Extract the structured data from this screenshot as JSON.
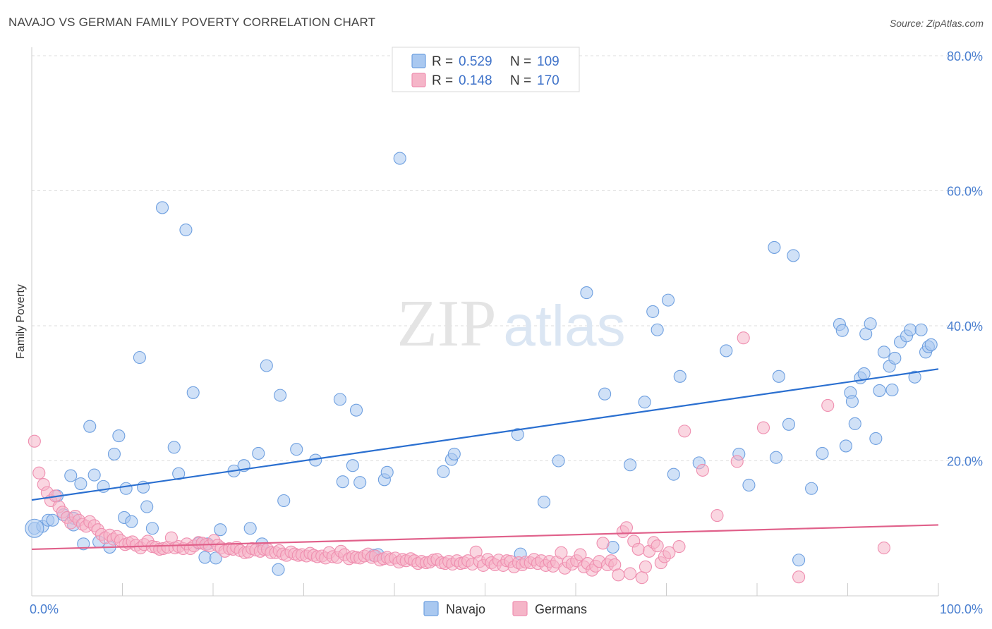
{
  "header": {
    "title": "NAVAJO VS GERMAN FAMILY POVERTY CORRELATION CHART",
    "source": "Source: ZipAtlas.com"
  },
  "watermark": {
    "zip": "ZIP",
    "atlas": "atlas"
  },
  "legend": {
    "r_label": "R =",
    "n_label": "N =",
    "rows": [
      {
        "series": "Navajo",
        "r": "0.529",
        "n": "109",
        "color": "#a9c8f0"
      },
      {
        "series": "Germans",
        "r": "0.148",
        "n": "170",
        "color": "#f5b5c8"
      }
    ]
  },
  "chart_data": {
    "type": "scatter",
    "title": "NAVAJO VS GERMAN FAMILY POVERTY CORRELATION CHART",
    "ylabel": "Family Poverty",
    "xlabel": "",
    "xlim": [
      0,
      100
    ],
    "ylim": [
      0,
      80
    ],
    "x_tick_labels": [
      "0.0%",
      "100.0%"
    ],
    "y_ticks": [
      20,
      40,
      60,
      80
    ],
    "y_tick_labels": [
      "20.0%",
      "40.0%",
      "60.0%",
      "80.0%"
    ],
    "grid": true,
    "legend_position": "top-center",
    "series": [
      {
        "name": "Navajo",
        "color": "#6fa0e0",
        "fill": "#a9c8f0",
        "trend": {
          "x": [
            0,
            100
          ],
          "y": [
            14.2,
            33.6
          ],
          "color": "#2a6fd0"
        },
        "points": [
          [
            0.3,
            10.0
          ],
          [
            1.2,
            10.3
          ],
          [
            1.8,
            11.2
          ],
          [
            2.3,
            11.2
          ],
          [
            2.8,
            14.8
          ],
          [
            3.5,
            12.0
          ],
          [
            4.3,
            17.8
          ],
          [
            4.6,
            11.5
          ],
          [
            4.6,
            10.5
          ],
          [
            5.4,
            16.6
          ],
          [
            5.7,
            7.7
          ],
          [
            6.4,
            25.1
          ],
          [
            6.9,
            17.9
          ],
          [
            7.4,
            8.0
          ],
          [
            7.9,
            16.2
          ],
          [
            8.6,
            7.2
          ],
          [
            9.1,
            21.0
          ],
          [
            9.6,
            23.7
          ],
          [
            10.2,
            11.6
          ],
          [
            10.4,
            15.9
          ],
          [
            11.0,
            11.0
          ],
          [
            11.9,
            35.3
          ],
          [
            12.3,
            16.1
          ],
          [
            12.7,
            13.2
          ],
          [
            13.3,
            10.0
          ],
          [
            14.4,
            57.5
          ],
          [
            15.7,
            22.0
          ],
          [
            16.2,
            18.1
          ],
          [
            17.0,
            54.2
          ],
          [
            17.8,
            30.1
          ],
          [
            18.4,
            7.8
          ],
          [
            19.1,
            5.7
          ],
          [
            19.4,
            7.7
          ],
          [
            20.3,
            5.6
          ],
          [
            20.8,
            9.8
          ],
          [
            22.3,
            18.5
          ],
          [
            23.4,
            19.3
          ],
          [
            24.1,
            10.0
          ],
          [
            25.0,
            21.1
          ],
          [
            25.4,
            7.7
          ],
          [
            25.9,
            34.1
          ],
          [
            27.2,
            3.9
          ],
          [
            27.4,
            29.7
          ],
          [
            27.8,
            14.1
          ],
          [
            29.2,
            21.7
          ],
          [
            31.3,
            20.1
          ],
          [
            34.0,
            29.1
          ],
          [
            34.3,
            16.9
          ],
          [
            35.4,
            19.3
          ],
          [
            35.8,
            27.5
          ],
          [
            36.2,
            16.8
          ],
          [
            37.7,
            6.0
          ],
          [
            38.2,
            6.1
          ],
          [
            38.9,
            17.2
          ],
          [
            39.2,
            18.3
          ],
          [
            40.6,
            64.8
          ],
          [
            45.4,
            18.4
          ],
          [
            46.3,
            20.2
          ],
          [
            46.6,
            21.0
          ],
          [
            53.6,
            23.9
          ],
          [
            53.9,
            6.2
          ],
          [
            56.5,
            13.9
          ],
          [
            58.1,
            20.0
          ],
          [
            61.2,
            44.9
          ],
          [
            63.2,
            29.9
          ],
          [
            64.1,
            7.2
          ],
          [
            66.0,
            19.4
          ],
          [
            67.6,
            28.7
          ],
          [
            68.5,
            42.1
          ],
          [
            69.0,
            39.4
          ],
          [
            70.2,
            43.8
          ],
          [
            70.8,
            18.0
          ],
          [
            71.5,
            32.5
          ],
          [
            73.6,
            19.7
          ],
          [
            76.6,
            36.3
          ],
          [
            78.0,
            21.0
          ],
          [
            79.1,
            16.4
          ],
          [
            81.9,
            51.6
          ],
          [
            82.1,
            20.5
          ],
          [
            82.4,
            32.5
          ],
          [
            83.5,
            25.4
          ],
          [
            84.0,
            50.4
          ],
          [
            84.6,
            5.3
          ],
          [
            86.0,
            15.9
          ],
          [
            87.2,
            21.1
          ],
          [
            89.1,
            40.2
          ],
          [
            89.4,
            39.3
          ],
          [
            89.8,
            22.2
          ],
          [
            90.3,
            30.1
          ],
          [
            90.5,
            28.8
          ],
          [
            90.8,
            25.5
          ],
          [
            91.4,
            32.3
          ],
          [
            91.8,
            32.9
          ],
          [
            92.0,
            38.8
          ],
          [
            92.5,
            40.3
          ],
          [
            93.1,
            23.3
          ],
          [
            93.5,
            30.4
          ],
          [
            94.0,
            36.1
          ],
          [
            94.6,
            34.0
          ],
          [
            94.9,
            30.5
          ],
          [
            95.2,
            35.2
          ],
          [
            95.8,
            37.6
          ],
          [
            96.5,
            38.5
          ],
          [
            96.9,
            39.4
          ],
          [
            97.4,
            32.4
          ],
          [
            98.1,
            39.4
          ],
          [
            98.6,
            36.1
          ],
          [
            98.9,
            36.9
          ],
          [
            99.2,
            37.2
          ]
        ]
      },
      {
        "name": "Germans",
        "color": "#ef8fb0",
        "fill": "#f5b5c8",
        "trend": {
          "x": [
            0,
            100
          ],
          "y": [
            6.9,
            10.5
          ],
          "color": "#e0608a"
        },
        "points": [
          [
            0.3,
            22.9
          ],
          [
            0.8,
            18.2
          ],
          [
            1.3,
            16.5
          ],
          [
            1.7,
            15.3
          ],
          [
            2.1,
            14.1
          ],
          [
            2.6,
            14.8
          ],
          [
            3.0,
            13.2
          ],
          [
            3.4,
            12.4
          ],
          [
            3.9,
            11.6
          ],
          [
            4.3,
            10.8
          ],
          [
            4.8,
            11.8
          ],
          [
            5.2,
            11.2
          ],
          [
            5.6,
            10.6
          ],
          [
            6.0,
            10.3
          ],
          [
            6.4,
            11.0
          ],
          [
            6.9,
            10.4
          ],
          [
            7.3,
            9.8
          ],
          [
            7.7,
            9.1
          ],
          [
            8.1,
            8.6
          ],
          [
            8.6,
            9.0
          ],
          [
            9.0,
            8.4
          ],
          [
            9.4,
            8.8
          ],
          [
            9.8,
            8.2
          ],
          [
            10.3,
            7.6
          ],
          [
            10.7,
            7.8
          ],
          [
            11.1,
            8.0
          ],
          [
            11.5,
            7.5
          ],
          [
            12.0,
            7.1
          ],
          [
            12.4,
            7.6
          ],
          [
            12.8,
            8.1
          ],
          [
            13.3,
            7.3
          ],
          [
            13.7,
            7.2
          ],
          [
            14.1,
            6.9
          ],
          [
            14.5,
            7.0
          ],
          [
            15.0,
            7.2
          ],
          [
            15.4,
            8.6
          ],
          [
            15.8,
            7.1
          ],
          [
            16.2,
            7.3
          ],
          [
            16.7,
            7.0
          ],
          [
            17.1,
            7.7
          ],
          [
            17.5,
            7.0
          ],
          [
            17.9,
            7.4
          ],
          [
            18.4,
            7.9
          ],
          [
            18.8,
            7.8
          ],
          [
            19.2,
            7.6
          ],
          [
            19.6,
            7.4
          ],
          [
            20.1,
            8.2
          ],
          [
            20.5,
            7.5
          ],
          [
            20.9,
            7.1
          ],
          [
            21.3,
            6.6
          ],
          [
            21.8,
            7.0
          ],
          [
            22.2,
            6.9
          ],
          [
            22.6,
            7.2
          ],
          [
            23.0,
            6.7
          ],
          [
            23.5,
            6.4
          ],
          [
            23.9,
            6.5
          ],
          [
            24.3,
            7.0
          ],
          [
            24.7,
            6.8
          ],
          [
            25.2,
            6.6
          ],
          [
            25.6,
            6.9
          ],
          [
            26.0,
            6.9
          ],
          [
            26.4,
            6.4
          ],
          [
            26.9,
            6.4
          ],
          [
            27.3,
            6.7
          ],
          [
            27.7,
            6.2
          ],
          [
            28.1,
            6.0
          ],
          [
            28.6,
            6.5
          ],
          [
            29.0,
            6.2
          ],
          [
            29.4,
            6.0
          ],
          [
            29.8,
            6.1
          ],
          [
            30.3,
            5.9
          ],
          [
            30.7,
            6.3
          ],
          [
            31.1,
            6.0
          ],
          [
            31.5,
            5.8
          ],
          [
            32.0,
            5.9
          ],
          [
            32.4,
            5.6
          ],
          [
            32.8,
            6.4
          ],
          [
            33.2,
            5.8
          ],
          [
            33.7,
            5.7
          ],
          [
            34.1,
            6.6
          ],
          [
            34.5,
            6.1
          ],
          [
            35.0,
            5.5
          ],
          [
            35.4,
            5.8
          ],
          [
            35.8,
            5.7
          ],
          [
            36.2,
            5.6
          ],
          [
            36.7,
            5.9
          ],
          [
            37.1,
            6.2
          ],
          [
            37.5,
            5.7
          ],
          [
            37.9,
            5.9
          ],
          [
            38.4,
            5.3
          ],
          [
            38.8,
            5.5
          ],
          [
            39.2,
            5.7
          ],
          [
            39.6,
            5.4
          ],
          [
            40.1,
            5.6
          ],
          [
            40.5,
            5.0
          ],
          [
            40.9,
            5.4
          ],
          [
            41.3,
            5.2
          ],
          [
            41.8,
            5.5
          ],
          [
            42.2,
            5.2
          ],
          [
            42.6,
            4.8
          ],
          [
            43.0,
            5.1
          ],
          [
            43.5,
            4.9
          ],
          [
            43.9,
            5.0
          ],
          [
            44.3,
            5.3
          ],
          [
            44.7,
            5.4
          ],
          [
            45.2,
            4.9
          ],
          [
            45.6,
            4.8
          ],
          [
            46.0,
            5.1
          ],
          [
            46.4,
            4.7
          ],
          [
            46.9,
            5.2
          ],
          [
            47.3,
            4.8
          ],
          [
            47.7,
            4.9
          ],
          [
            48.1,
            5.2
          ],
          [
            48.6,
            4.7
          ],
          [
            49.0,
            6.5
          ],
          [
            49.4,
            5.1
          ],
          [
            49.8,
            4.5
          ],
          [
            50.3,
            5.4
          ],
          [
            50.7,
            4.9
          ],
          [
            51.1,
            4.6
          ],
          [
            51.5,
            5.3
          ],
          [
            52.0,
            4.5
          ],
          [
            52.4,
            5.2
          ],
          [
            52.8,
            5.1
          ],
          [
            53.2,
            4.3
          ],
          [
            53.7,
            4.9
          ],
          [
            54.1,
            4.6
          ],
          [
            54.5,
            5.0
          ],
          [
            55.0,
            4.9
          ],
          [
            55.4,
            5.4
          ],
          [
            55.8,
            4.8
          ],
          [
            56.2,
            5.2
          ],
          [
            56.7,
            4.5
          ],
          [
            57.1,
            5.1
          ],
          [
            57.5,
            4.4
          ],
          [
            57.9,
            5.0
          ],
          [
            58.4,
            6.4
          ],
          [
            58.8,
            4.1
          ],
          [
            59.2,
            5.0
          ],
          [
            59.6,
            4.7
          ],
          [
            60.1,
            5.2
          ],
          [
            60.5,
            6.1
          ],
          [
            60.9,
            4.3
          ],
          [
            61.3,
            4.8
          ],
          [
            61.8,
            3.8
          ],
          [
            62.2,
            4.4
          ],
          [
            62.6,
            5.1
          ],
          [
            63.0,
            7.8
          ],
          [
            63.5,
            4.6
          ],
          [
            63.9,
            5.2
          ],
          [
            64.3,
            4.6
          ],
          [
            64.7,
            3.1
          ],
          [
            65.2,
            9.5
          ],
          [
            65.6,
            10.1
          ],
          [
            66.0,
            3.3
          ],
          [
            66.4,
            8.1
          ],
          [
            66.9,
            6.9
          ],
          [
            67.3,
            2.7
          ],
          [
            67.7,
            4.3
          ],
          [
            68.1,
            6.6
          ],
          [
            68.6,
            7.9
          ],
          [
            69.0,
            7.4
          ],
          [
            69.4,
            4.9
          ],
          [
            69.8,
            5.8
          ],
          [
            70.3,
            6.4
          ],
          [
            71.4,
            7.3
          ],
          [
            72.0,
            24.4
          ],
          [
            74.0,
            18.6
          ],
          [
            75.6,
            11.9
          ],
          [
            77.8,
            19.9
          ],
          [
            78.5,
            38.2
          ],
          [
            80.7,
            24.9
          ],
          [
            84.6,
            2.8
          ],
          [
            87.8,
            28.2
          ],
          [
            94.0,
            7.1
          ]
        ]
      }
    ]
  },
  "bottom_legend": [
    {
      "label": "Navajo"
    },
    {
      "label": "Germans"
    }
  ]
}
